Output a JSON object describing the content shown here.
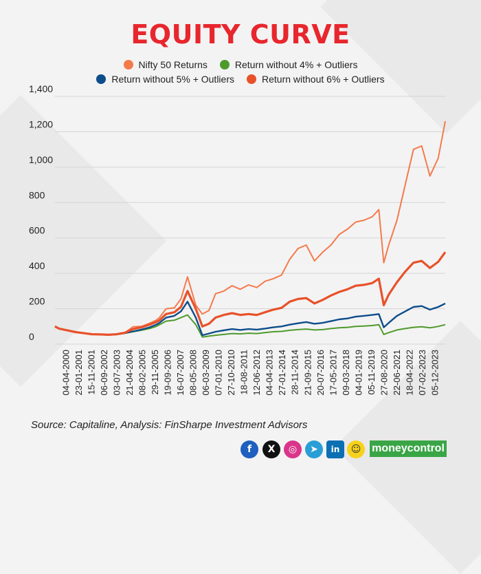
{
  "title": "EQUITY CURVE",
  "source": "Source: Capitaline, Analysis: FinSharpe Investment Advisors",
  "brand": "moneycontrol",
  "social_icons": [
    "facebook-icon",
    "x-icon",
    "instagram-icon",
    "telegram-icon",
    "linkedin-icon",
    "snapchat-icon"
  ],
  "colors": {
    "title": "#e8262d",
    "nifty": "#f47a4c",
    "ret4": "#4e9a2c",
    "ret5": "#0d4d8a",
    "ret6": "#e8512a",
    "brand_bg": "#3aa546"
  },
  "chart_data": {
    "type": "line",
    "title": "EQUITY CURVE",
    "ylim": [
      0,
      1400
    ],
    "yticks": [
      0,
      200,
      400,
      600,
      800,
      1000,
      1200,
      1400
    ],
    "ytick_labels": [
      "0",
      "200",
      "400",
      "600",
      "800",
      "1,000",
      "1,200",
      "1,400"
    ],
    "x_tick_labels": [
      "04-04-2000",
      "23-01-2001",
      "15-11-2001",
      "06-09-2002",
      "03-07-2003",
      "21-04-2004",
      "08-02-2005",
      "29-11-2005",
      "19-09-2006",
      "16-07-2007",
      "08-05-2008",
      "06-03-2009",
      "07-01-2010",
      "27-10-2010",
      "18-08-2011",
      "12-06-2012",
      "04-04-2013",
      "27-01-2014",
      "28-11-2014",
      "21-09-2015",
      "20-07-2016",
      "17-05-2017",
      "09-03-2018",
      "04-01-2019",
      "05-11-2019",
      "27-08-2020",
      "22-06-2021",
      "18-04-2022",
      "07-02-2023",
      "05-12-2023"
    ],
    "x_years": [
      2000.26,
      2000.5,
      2001.0,
      2001.5,
      2002.0,
      2002.5,
      2003.0,
      2003.5,
      2004.0,
      2004.5,
      2005.0,
      2005.5,
      2006.0,
      2006.4,
      2006.6,
      2007.0,
      2007.5,
      2007.9,
      2008.3,
      2008.8,
      2009.2,
      2009.6,
      2010.0,
      2010.5,
      2011.0,
      2011.5,
      2012.0,
      2012.5,
      2013.0,
      2013.5,
      2014.0,
      2014.5,
      2015.0,
      2015.5,
      2016.0,
      2016.5,
      2017.0,
      2017.5,
      2018.0,
      2018.5,
      2019.0,
      2019.5,
      2019.9,
      2020.2,
      2020.5,
      2021.0,
      2021.5,
      2022.0,
      2022.5,
      2023.0,
      2023.5,
      2023.93
    ],
    "series": [
      {
        "name": "Nifty 50 Returns",
        "color_key": "nifty",
        "values": [
          100,
          88,
          78,
          68,
          62,
          56,
          55,
          54,
          56,
          65,
          98,
          100,
          118,
          135,
          150,
          200,
          205,
          255,
          380,
          220,
          170,
          190,
          285,
          300,
          330,
          310,
          335,
          320,
          355,
          370,
          390,
          480,
          540,
          560,
          470,
          520,
          560,
          620,
          650,
          690,
          700,
          720,
          760,
          460,
          560,
          700,
          900,
          1100,
          1120,
          950,
          1050,
          1260
        ]
      },
      {
        "name": "Return without 4% + Outliers",
        "color_key": "ret4",
        "values": [
          100,
          88,
          78,
          68,
          62,
          56,
          54,
          52,
          55,
          62,
          70,
          78,
          88,
          100,
          110,
          130,
          135,
          150,
          165,
          110,
          40,
          45,
          50,
          55,
          60,
          58,
          62,
          60,
          65,
          70,
          72,
          78,
          82,
          85,
          80,
          82,
          88,
          92,
          95,
          100,
          102,
          105,
          110,
          55,
          65,
          80,
          88,
          95,
          98,
          92,
          100,
          110
        ]
      },
      {
        "name": "Return without 5% + Outliers",
        "color_key": "ret5",
        "values": [
          100,
          88,
          78,
          68,
          62,
          56,
          54,
          52,
          55,
          62,
          72,
          82,
          95,
          110,
          120,
          150,
          160,
          185,
          240,
          150,
          50,
          60,
          70,
          78,
          85,
          80,
          85,
          82,
          88,
          95,
          100,
          110,
          118,
          125,
          115,
          120,
          130,
          140,
          145,
          155,
          160,
          165,
          170,
          95,
          120,
          160,
          185,
          210,
          215,
          195,
          210,
          230
        ]
      },
      {
        "name": "Return without 6% + Outliers",
        "color_key": "ret6",
        "values": [
          100,
          88,
          78,
          68,
          62,
          56,
          55,
          53,
          56,
          64,
          85,
          95,
          110,
          125,
          135,
          170,
          180,
          210,
          300,
          200,
          100,
          115,
          150,
          165,
          175,
          165,
          170,
          165,
          180,
          195,
          205,
          240,
          255,
          260,
          230,
          250,
          275,
          295,
          310,
          330,
          335,
          345,
          370,
          220,
          280,
          350,
          410,
          460,
          470,
          430,
          465,
          520
        ]
      }
    ]
  },
  "legend_rows": [
    [
      {
        "label": "Nifty 50 Returns",
        "color_key": "nifty"
      },
      {
        "label": "Return without 4% + Outliers",
        "color_key": "ret4"
      }
    ],
    [
      {
        "label": "Return without 5% + Outliers",
        "color_key": "ret5"
      },
      {
        "label": "Return without 6% + Outliers",
        "color_key": "ret6"
      }
    ]
  ]
}
